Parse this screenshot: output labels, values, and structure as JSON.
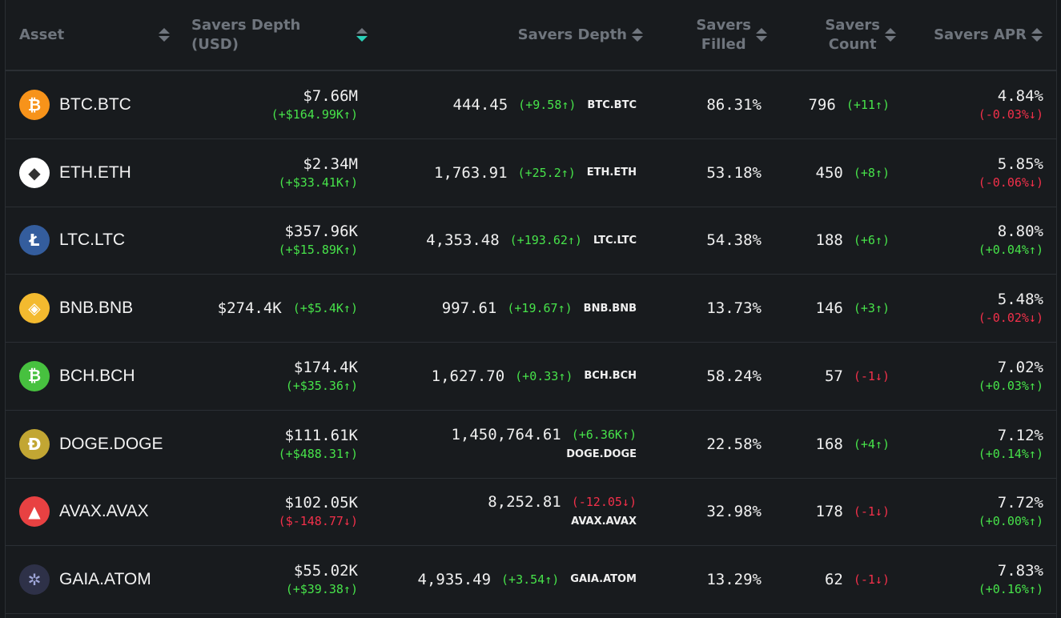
{
  "columns": {
    "asset": "Asset",
    "depth_usd": "Savers Depth (USD)",
    "depth": "Savers Depth",
    "filled_1": "Savers",
    "filled_2": "Filled",
    "count_1": "Savers",
    "count_2": "Count",
    "apr": "Savers APR"
  },
  "rows": [
    {
      "asset": "BTC.BTC",
      "icon": "bitcoin-icon",
      "icon_color": "#f7931a",
      "glyph": "₿",
      "usd": "$7.66M",
      "usd_change": "(+$164.99K↑)",
      "usd_dir": "up",
      "usd_inline": false,
      "depth": "444.45",
      "depth_change": "(+9.58↑)",
      "depth_dir": "up",
      "depth_inline": true,
      "filled": "86.31%",
      "count": "796",
      "count_change": "(+11↑)",
      "count_dir": "up",
      "apr": "4.84%",
      "apr_change": "(-0.03%↓)",
      "apr_dir": "down"
    },
    {
      "asset": "ETH.ETH",
      "icon": "ethereum-icon",
      "icon_color": "#ffffff",
      "glyph": "◆",
      "usd": "$2.34M",
      "usd_change": "(+$33.41K↑)",
      "usd_dir": "up",
      "usd_inline": false,
      "depth": "1,763.91",
      "depth_change": "(+25.2↑)",
      "depth_dir": "up",
      "depth_inline": true,
      "filled": "53.18%",
      "count": "450",
      "count_change": "(+8↑)",
      "count_dir": "up",
      "apr": "5.85%",
      "apr_change": "(-0.06%↓)",
      "apr_dir": "down"
    },
    {
      "asset": "LTC.LTC",
      "icon": "litecoin-icon",
      "icon_color": "#345d9d",
      "glyph": "Ł",
      "usd": "$357.96K",
      "usd_change": "(+$15.89K↑)",
      "usd_dir": "up",
      "usd_inline": false,
      "depth": "4,353.48",
      "depth_change": "(+193.62↑)",
      "depth_dir": "up",
      "depth_inline": true,
      "filled": "54.38%",
      "count": "188",
      "count_change": "(+6↑)",
      "count_dir": "up",
      "apr": "8.80%",
      "apr_change": "(+0.04%↑)",
      "apr_dir": "up"
    },
    {
      "asset": "BNB.BNB",
      "icon": "bnb-icon",
      "icon_color": "#f3ba2f",
      "glyph": "◈",
      "usd": "$274.4K",
      "usd_change": "(+$5.4K↑)",
      "usd_dir": "up",
      "usd_inline": true,
      "depth": "997.61",
      "depth_change": "(+19.67↑)",
      "depth_dir": "up",
      "depth_inline": true,
      "filled": "13.73%",
      "count": "146",
      "count_change": "(+3↑)",
      "count_dir": "up",
      "apr": "5.48%",
      "apr_change": "(-0.02%↓)",
      "apr_dir": "down"
    },
    {
      "asset": "BCH.BCH",
      "icon": "bitcoin-cash-icon",
      "icon_color": "#47c13f",
      "glyph": "₿",
      "usd": "$174.4K",
      "usd_change": "(+$35.36↑)",
      "usd_dir": "up",
      "usd_inline": false,
      "depth": "1,627.70",
      "depth_change": "(+0.33↑)",
      "depth_dir": "up",
      "depth_inline": true,
      "filled": "58.24%",
      "count": "57",
      "count_change": "(-1↓)",
      "count_dir": "down",
      "apr": "7.02%",
      "apr_change": "(+0.03%↑)",
      "apr_dir": "up"
    },
    {
      "asset": "DOGE.DOGE",
      "icon": "dogecoin-icon",
      "icon_color": "#c2a633",
      "glyph": "Ð",
      "usd": "$111.61K",
      "usd_change": "(+$488.31↑)",
      "usd_dir": "up",
      "usd_inline": false,
      "depth": "1,450,764.61",
      "depth_change": "(+6.36K↑)",
      "depth_dir": "up",
      "depth_inline": false,
      "filled": "22.58%",
      "count": "168",
      "count_change": "(+4↑)",
      "count_dir": "up",
      "apr": "7.12%",
      "apr_change": "(+0.14%↑)",
      "apr_dir": "up"
    },
    {
      "asset": "AVAX.AVAX",
      "icon": "avalanche-icon",
      "icon_color": "#e84142",
      "glyph": "▲",
      "usd": "$102.05K",
      "usd_change": "($-148.77↓)",
      "usd_dir": "down",
      "usd_inline": false,
      "depth": "8,252.81",
      "depth_change": "(-12.05↓)",
      "depth_dir": "down",
      "depth_inline": false,
      "filled": "32.98%",
      "count": "178",
      "count_change": "(-1↓)",
      "count_dir": "down",
      "apr": "7.72%",
      "apr_change": "(+0.00%↑)",
      "apr_dir": "up"
    },
    {
      "asset": "GAIA.ATOM",
      "icon": "cosmos-icon",
      "icon_color": "#2e3148",
      "glyph": "✲",
      "usd": "$55.02K",
      "usd_change": "(+$39.38↑)",
      "usd_dir": "up",
      "usd_inline": false,
      "depth": "4,935.49",
      "depth_change": "(+3.54↑)",
      "depth_dir": "up",
      "depth_inline": true,
      "filled": "13.29%",
      "count": "62",
      "count_change": "(-1↓)",
      "count_dir": "down",
      "apr": "7.83%",
      "apr_change": "(+0.16%↑)",
      "apr_dir": "up"
    }
  ]
}
